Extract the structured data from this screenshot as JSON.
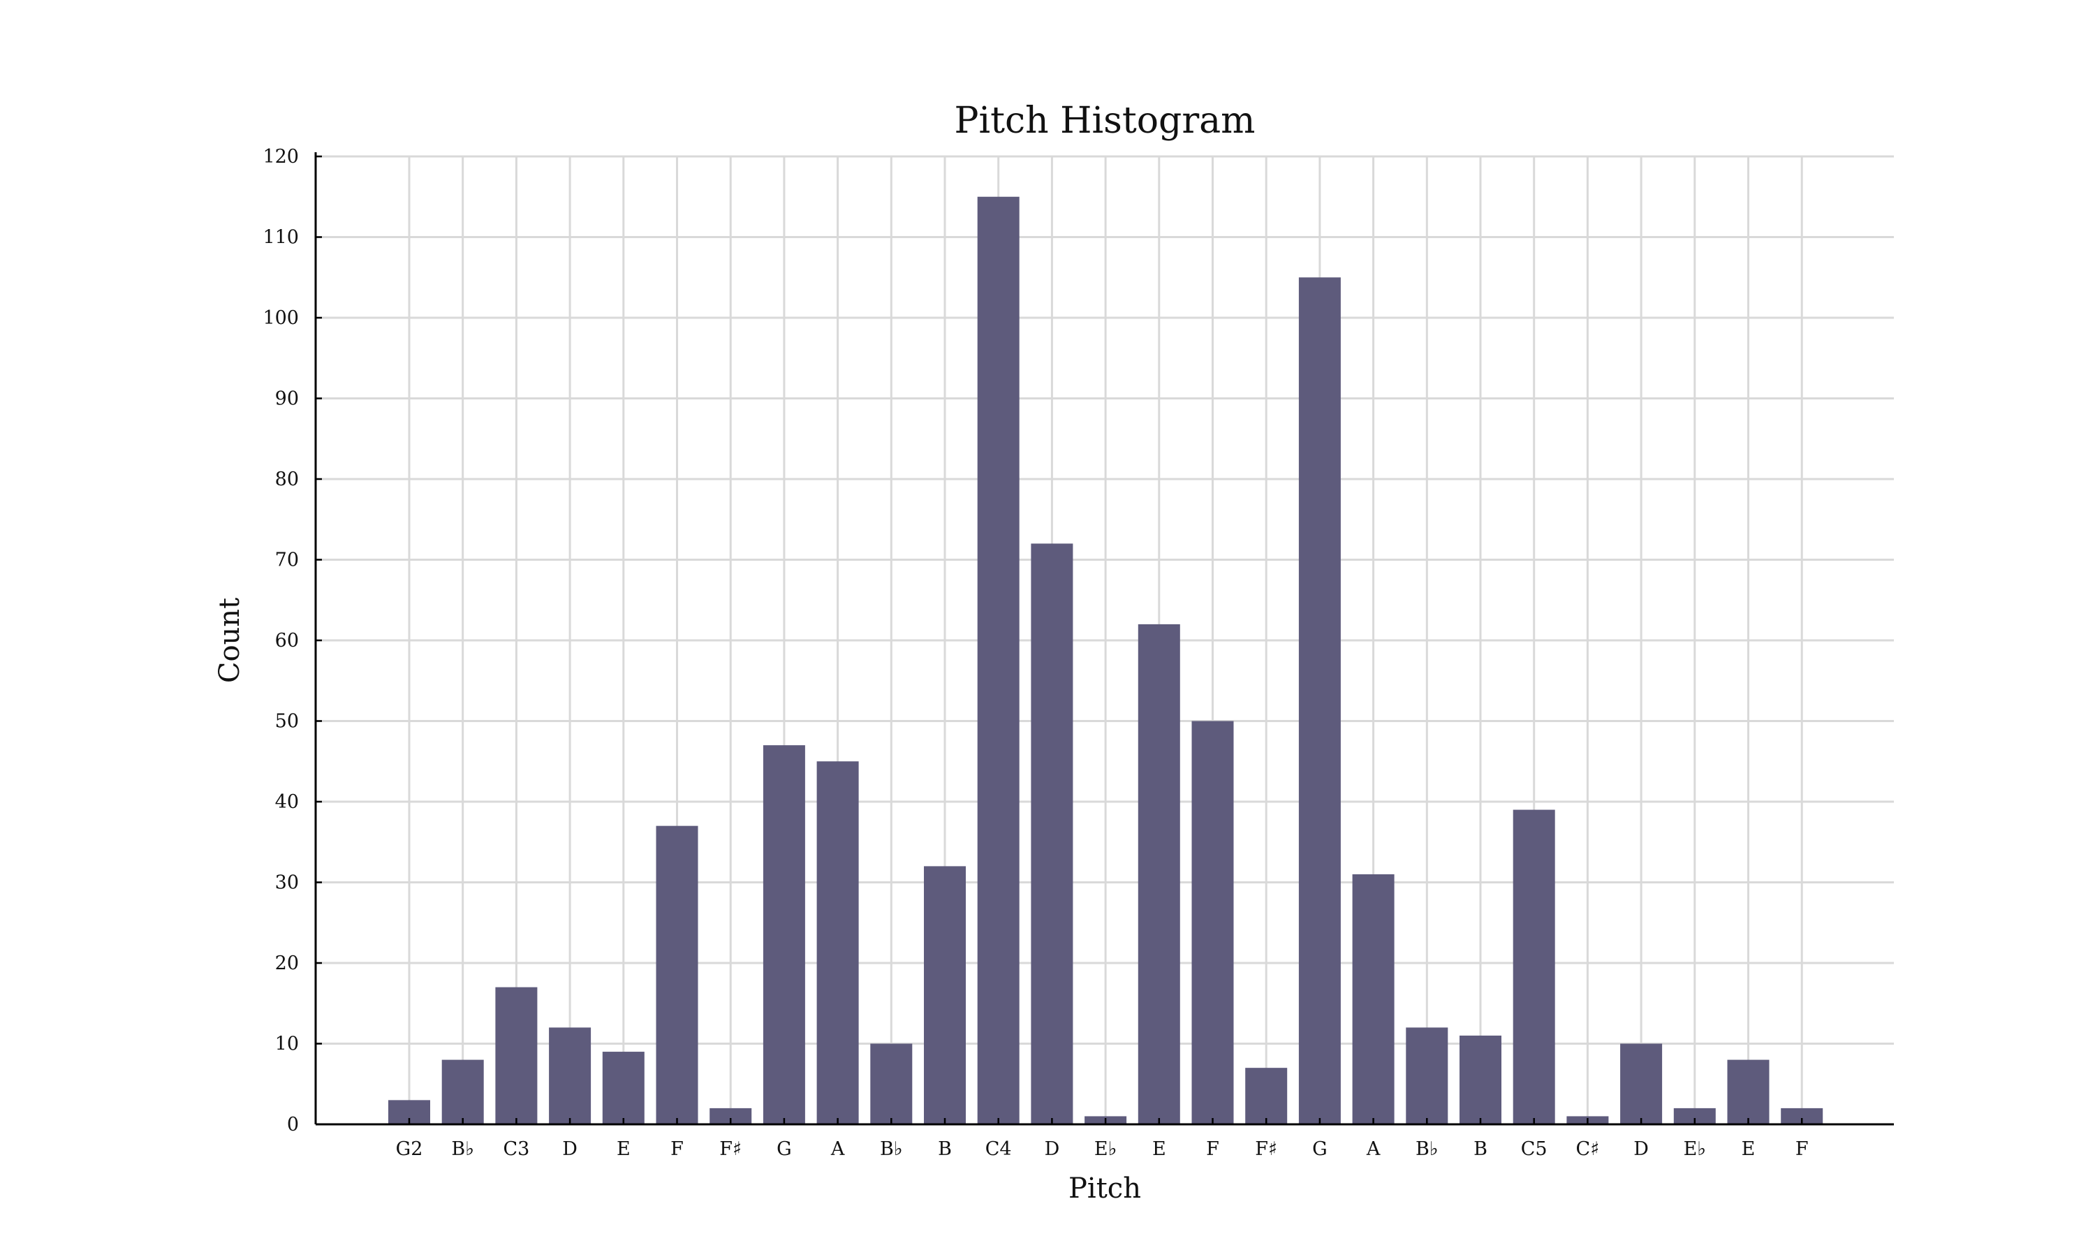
{
  "chart_data": {
    "type": "bar",
    "title": "Pitch Histogram",
    "xlabel": "Pitch",
    "ylabel": "Count",
    "categories": [
      "G2",
      "B♭",
      "C3",
      "D",
      "E",
      "F",
      "F♯",
      "G",
      "A",
      "B♭",
      "B",
      "C4",
      "D",
      "E♭",
      "E",
      "F",
      "F♯",
      "G",
      "A",
      "B♭",
      "B",
      "C5",
      "C♯",
      "D",
      "E♭",
      "E",
      "F"
    ],
    "values": [
      3,
      8,
      17,
      12,
      9,
      37,
      2,
      47,
      45,
      10,
      32,
      115,
      72,
      1,
      62,
      50,
      7,
      105,
      31,
      12,
      11,
      39,
      1,
      10,
      2,
      8,
      2
    ],
    "ylim": [
      0,
      120
    ],
    "yticks": [
      0,
      10,
      20,
      30,
      40,
      50,
      60,
      70,
      80,
      90,
      100,
      110,
      120
    ],
    "grid": true,
    "bar_color": "#5e5b7c",
    "grid_color": "#d9d9d9"
  }
}
